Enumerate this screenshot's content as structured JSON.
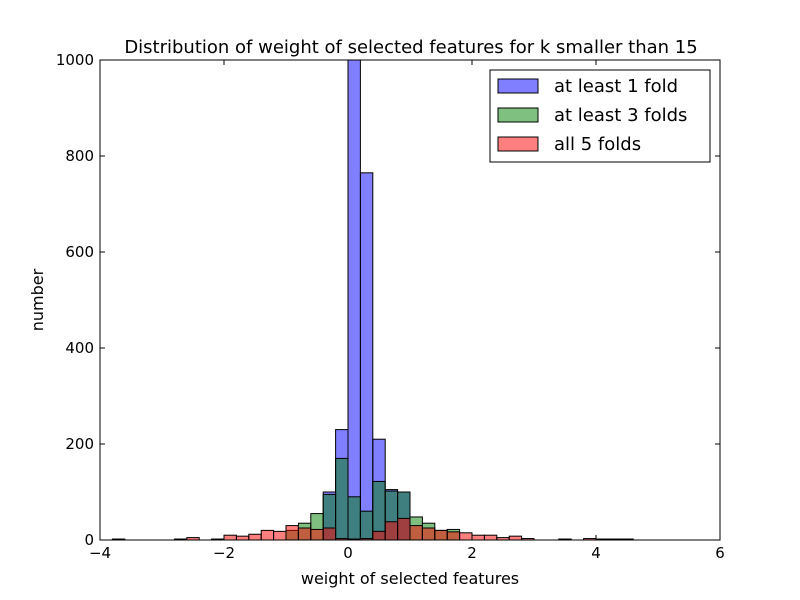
{
  "chart_data": {
    "type": "bar",
    "title": "Distribution of weight of selected features for k smaller than 15",
    "xlabel": "weight of selected features",
    "ylabel": "number",
    "xlim": [
      -4,
      6
    ],
    "ylim": [
      0,
      1000
    ],
    "x_ticks": [
      -4,
      -2,
      0,
      2,
      4,
      6
    ],
    "y_ticks": [
      0,
      200,
      400,
      600,
      800,
      1000
    ],
    "x_tick_labels": [
      "−4",
      "−2",
      "0",
      "2",
      "4",
      "6"
    ],
    "y_tick_labels": [
      "0",
      "200",
      "400",
      "600",
      "800",
      "1000"
    ],
    "grid": false,
    "legend_position": "top-right",
    "series": [
      {
        "name": "at least 1 fold",
        "color": "#0000ff",
        "bins": [
          [
            -0.4,
            -0.2,
            100
          ],
          [
            -0.2,
            0.0,
            230
          ],
          [
            0.0,
            0.2,
            1000
          ],
          [
            0.2,
            0.4,
            765
          ],
          [
            0.4,
            0.6,
            210
          ],
          [
            0.6,
            0.8,
            105
          ],
          [
            0.8,
            1.0,
            100
          ]
        ]
      },
      {
        "name": "at least 3 folds",
        "color": "#008000",
        "bins": [
          [
            -1.0,
            -0.8,
            20
          ],
          [
            -0.8,
            -0.6,
            35
          ],
          [
            -0.6,
            -0.4,
            55
          ],
          [
            -0.4,
            -0.2,
            95
          ],
          [
            -0.2,
            0.0,
            170
          ],
          [
            0.0,
            0.2,
            90
          ],
          [
            0.2,
            0.4,
            60
          ],
          [
            0.4,
            0.6,
            122
          ],
          [
            0.6,
            0.8,
            102
          ],
          [
            0.8,
            1.0,
            100
          ],
          [
            1.0,
            1.2,
            48
          ],
          [
            1.2,
            1.4,
            35
          ],
          [
            1.4,
            1.6,
            20
          ],
          [
            1.6,
            1.8,
            22
          ]
        ]
      },
      {
        "name": "all 5 folds",
        "color": "#ff0000",
        "bins": [
          [
            -3.8,
            -3.6,
            2
          ],
          [
            -2.8,
            -2.6,
            2
          ],
          [
            -2.6,
            -2.4,
            5
          ],
          [
            -2.2,
            -2.0,
            2
          ],
          [
            -2.0,
            -1.8,
            10
          ],
          [
            -1.8,
            -1.6,
            8
          ],
          [
            -1.6,
            -1.4,
            12
          ],
          [
            -1.4,
            -1.2,
            20
          ],
          [
            -1.2,
            -1.0,
            18
          ],
          [
            -1.0,
            -0.8,
            30
          ],
          [
            -0.8,
            -0.6,
            25
          ],
          [
            -0.6,
            -0.4,
            22
          ],
          [
            -0.4,
            -0.2,
            25
          ],
          [
            -0.2,
            0.0,
            3
          ],
          [
            0.0,
            0.2,
            2
          ],
          [
            0.2,
            0.4,
            3
          ],
          [
            0.4,
            0.6,
            18
          ],
          [
            0.6,
            0.8,
            38
          ],
          [
            0.8,
            1.0,
            45
          ],
          [
            1.0,
            1.2,
            30
          ],
          [
            1.2,
            1.4,
            25
          ],
          [
            1.4,
            1.6,
            20
          ],
          [
            1.6,
            1.8,
            17
          ],
          [
            1.8,
            2.0,
            15
          ],
          [
            2.0,
            2.2,
            10
          ],
          [
            2.2,
            2.4,
            10
          ],
          [
            2.4,
            2.6,
            5
          ],
          [
            2.6,
            2.8,
            8
          ],
          [
            2.8,
            3.0,
            3
          ],
          [
            3.4,
            3.6,
            2
          ],
          [
            3.8,
            4.0,
            3
          ],
          [
            4.0,
            4.2,
            2
          ],
          [
            4.2,
            4.4,
            2
          ],
          [
            4.4,
            4.6,
            2
          ]
        ]
      }
    ]
  }
}
